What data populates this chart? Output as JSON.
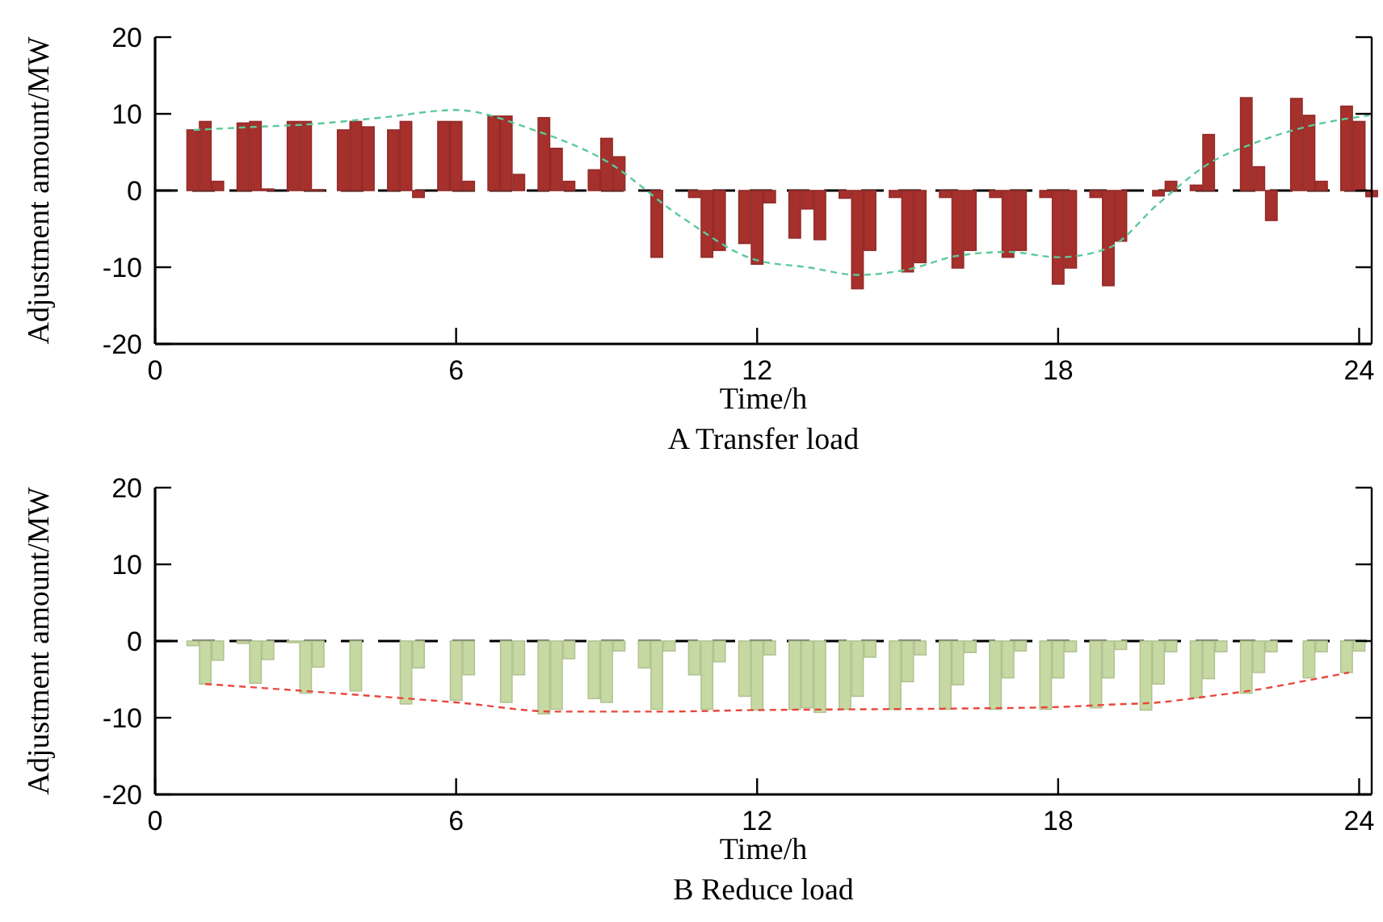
{
  "chart_data": [
    {
      "type": "bar",
      "title": "A Transfer load",
      "xlabel": "Time/h",
      "ylabel": "Adjustment amount/MW",
      "xlim": [
        0,
        24.25
      ],
      "xticks": [
        0,
        6,
        12,
        18,
        24
      ],
      "ylim": [
        -20,
        20
      ],
      "yticks": [
        -20,
        -10,
        0,
        10,
        20
      ],
      "grid": false,
      "x": [
        0.75,
        1,
        1.25,
        1.5,
        1.75,
        2,
        2.25,
        2.5,
        2.75,
        3,
        3.25,
        3.5,
        3.75,
        4,
        4.25,
        4.5,
        4.75,
        5,
        5.25,
        5.5,
        5.75,
        6,
        6.25,
        6.5,
        6.75,
        7,
        7.25,
        7.5,
        7.75,
        8,
        8.25,
        8.5,
        8.75,
        9,
        9.25,
        9.5,
        9.75,
        10,
        10.25,
        10.5,
        10.75,
        11,
        11.25,
        11.5,
        11.75,
        12,
        12.25,
        12.5,
        12.75,
        13,
        13.25,
        13.5,
        13.75,
        14,
        14.25,
        14.5,
        14.75,
        15,
        15.25,
        15.5,
        15.75,
        16,
        16.25,
        16.5,
        16.75,
        17,
        17.25,
        17.5,
        17.75,
        18,
        18.25,
        18.5,
        18.75,
        19,
        19.25,
        19.5,
        19.75,
        20,
        20.25,
        20.5,
        20.75,
        21,
        21.25,
        21.5,
        21.75,
        22,
        22.25,
        22.5,
        22.75,
        23,
        23.25,
        23.5,
        23.75,
        24,
        24.25
      ],
      "series": [
        {
          "color": "#a5302c",
          "values": [
            7.9,
            9.0,
            1.2,
            0,
            8.8,
            9.0,
            0.2,
            0,
            9.0,
            9.0,
            0.1,
            0,
            7.9,
            9.0,
            8.3,
            0,
            7.9,
            9.0,
            -0.9,
            0,
            9.0,
            9.0,
            1.2,
            0,
            9.7,
            9.7,
            2.1,
            0,
            9.5,
            5.5,
            1.2,
            0,
            2.7,
            6.8,
            4.4,
            0,
            0,
            -8.7,
            0,
            0,
            -0.9,
            -8.7,
            -7.8,
            0,
            -6.9,
            -9.6,
            -1.6,
            0,
            -6.2,
            -2.4,
            -6.4,
            0,
            -1.0,
            -12.8,
            -7.8,
            0,
            -0.9,
            -10.6,
            -9.4,
            0,
            -0.9,
            -10.1,
            -7.8,
            0,
            -0.9,
            -8.7,
            -7.8,
            0,
            -0.9,
            -12.2,
            -10.1,
            0,
            -0.9,
            -12.4,
            -6.6,
            0,
            0,
            -0.7,
            1.2,
            0,
            0.7,
            7.3,
            0,
            0,
            12.1,
            3.1,
            -3.9,
            0,
            12.0,
            9.8,
            1.2,
            0,
            11.0,
            9.0,
            -0.8
          ]
        },
        {
          "type": "line",
          "color": "#5cc99a",
          "line_style": "dashed",
          "marker": "none",
          "x": [
            0.77,
            2,
            3,
            4.5,
            6,
            7.5,
            9,
            10.5,
            12,
            13,
            14,
            15,
            16,
            17,
            18,
            19,
            20,
            21,
            22,
            23,
            24.2
          ],
          "values": [
            7.9,
            8.3,
            8.6,
            9.5,
            10.5,
            8.0,
            3.8,
            -3.5,
            -9.1,
            -10.0,
            -11.0,
            -10.3,
            -8.5,
            -8.0,
            -8.7,
            -7.5,
            -1.7,
            3.5,
            6.4,
            8.4,
            9.8
          ]
        }
      ],
      "ref_lines": [
        {
          "axis": "y",
          "value": 0,
          "color": "#000000",
          "line_style": "dashed"
        }
      ]
    },
    {
      "type": "bar",
      "title": "B Reduce load",
      "xlabel": "Time/h",
      "ylabel": "Adjustment amount/MW",
      "xlim": [
        0,
        24.25
      ],
      "xticks": [
        0,
        6,
        12,
        18,
        24
      ],
      "ylim": [
        -20,
        20
      ],
      "yticks": [
        -20,
        -10,
        0,
        10,
        20
      ],
      "grid": false,
      "x": [
        0.75,
        1,
        1.25,
        1.5,
        1.75,
        2,
        2.25,
        2.5,
        2.75,
        3,
        3.25,
        3.5,
        3.75,
        4,
        4.25,
        4.5,
        4.75,
        5,
        5.25,
        5.5,
        5.75,
        6,
        6.25,
        6.5,
        6.75,
        7,
        7.25,
        7.5,
        7.75,
        8,
        8.25,
        8.5,
        8.75,
        9,
        9.25,
        9.5,
        9.75,
        10,
        10.25,
        10.5,
        10.75,
        11,
        11.25,
        11.5,
        11.75,
        12,
        12.25,
        12.5,
        12.75,
        13,
        13.25,
        13.5,
        13.75,
        14,
        14.25,
        14.5,
        14.75,
        15,
        15.25,
        15.5,
        15.75,
        16,
        16.25,
        16.5,
        16.75,
        17,
        17.25,
        17.5,
        17.75,
        18,
        18.25,
        18.5,
        18.75,
        19,
        19.25,
        19.5,
        19.75,
        20,
        20.25,
        20.5,
        20.75,
        21,
        21.25,
        21.5,
        21.75,
        22,
        22.25,
        22.5,
        22.75,
        23,
        23.25,
        23.5,
        23.75,
        24,
        24.25
      ],
      "series": [
        {
          "color": "#c6d9a3",
          "values": [
            -0.6,
            -5.6,
            -2.5,
            0,
            -0.3,
            -5.5,
            -2.4,
            0,
            -0.2,
            -6.8,
            -3.4,
            0,
            0,
            -6.5,
            0,
            0,
            0,
            -8.2,
            -3.5,
            0,
            0,
            -7.7,
            -4.4,
            0,
            0,
            -8.0,
            -4.4,
            0,
            -9.5,
            -8.9,
            -2.3,
            0,
            -7.5,
            -8.0,
            -1.3,
            0,
            -3.5,
            -8.9,
            -1.3,
            0,
            -4.4,
            -8.9,
            -2.7,
            0,
            -7.2,
            -9.0,
            -1.8,
            0,
            -8.9,
            -8.7,
            -9.3,
            0,
            -8.9,
            -7.2,
            -2.1,
            0,
            -8.9,
            -5.3,
            -1.8,
            0,
            -8.9,
            -5.7,
            -1.5,
            0,
            -8.9,
            -4.8,
            -1.3,
            0,
            -8.9,
            -4.8,
            -1.4,
            0,
            -8.7,
            -4.8,
            -1.1,
            0,
            -9.0,
            -5.6,
            -1.4,
            0,
            -7.4,
            -4.9,
            -1.4,
            0,
            -6.8,
            -4.1,
            -1.4,
            0,
            0,
            -4.8,
            -1.4,
            0,
            -4.1,
            -1.3,
            0
          ]
        },
        {
          "type": "line",
          "color": "#e8463c",
          "line_style": "dashed",
          "marker": "none",
          "x": [
            1,
            4,
            6,
            8,
            10,
            12,
            14,
            16,
            18,
            19,
            20,
            21,
            22,
            23,
            23.8
          ],
          "values": [
            -5.6,
            -7.0,
            -8.0,
            -9.2,
            -9.2,
            -9.0,
            -8.9,
            -8.8,
            -8.6,
            -8.3,
            -8.0,
            -7.2,
            -6.3,
            -5.1,
            -4.1
          ]
        }
      ],
      "ref_lines": [
        {
          "axis": "y",
          "value": 0,
          "color": "#000000",
          "line_style": "dashed"
        }
      ]
    }
  ]
}
